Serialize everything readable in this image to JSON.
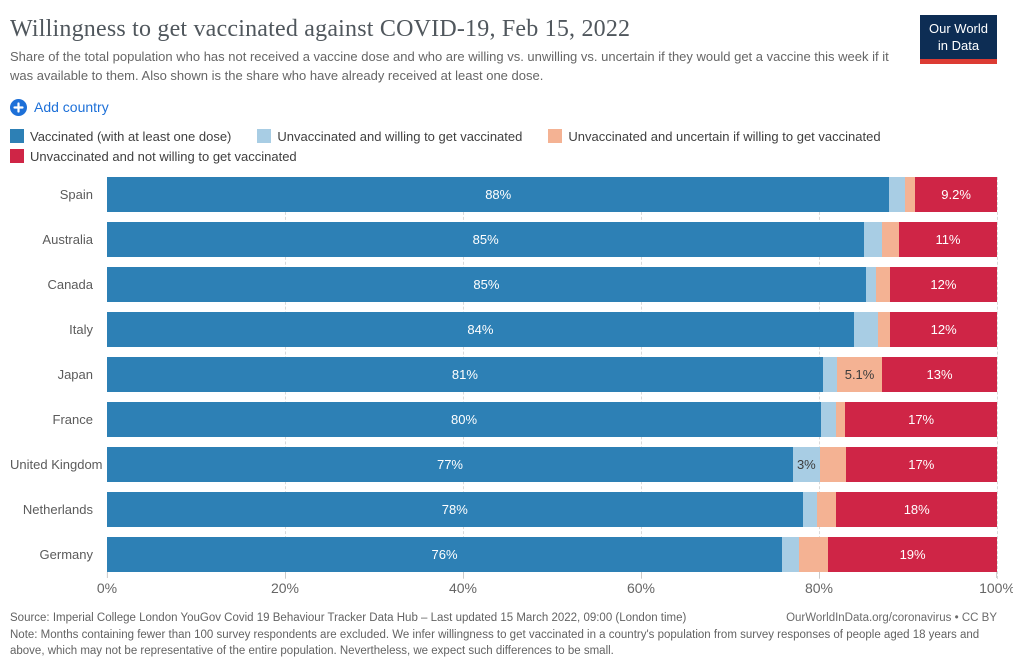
{
  "header": {
    "title": "Willingness to get vaccinated against COVID-19, Feb 15, 2022",
    "subtitle": "Share of the total population who has not received a vaccine dose and who are willing vs. unwilling vs. uncertain if they would get a vaccine this week if it was available to them. Also shown is the share who have already received at least one dose.",
    "logo": {
      "line1": "Our World",
      "line2": "in Data"
    }
  },
  "controls": {
    "add_country_label": "Add country"
  },
  "colors": {
    "accent_blue": "#1d70d8",
    "logo_background": "#0d2d54",
    "logo_underline": "#dc3b33",
    "grid_line": "#d9d9d9",
    "series": {
      "vaccinated": "#2d80b5",
      "willing": "#a8cde4",
      "uncertain": "#f4b293",
      "unwilling": "#cf2546"
    }
  },
  "chart_data": {
    "type": "bar",
    "stacked": true,
    "orientation": "horizontal",
    "title": "Willingness to get vaccinated against COVID-19, Feb 15, 2022",
    "categories": [
      "Spain",
      "Australia",
      "Canada",
      "Italy",
      "Japan",
      "France",
      "United Kingdom",
      "Netherlands",
      "Germany"
    ],
    "series": [
      {
        "key": "vaccinated",
        "name": "Vaccinated (with at least one dose)",
        "color": "#2d80b5",
        "values": [
          88,
          85,
          85,
          84,
          81,
          80,
          77,
          78,
          76
        ],
        "value_labels": [
          "88%",
          "85%",
          "85%",
          "84%",
          "81%",
          "80%",
          "77%",
          "78%",
          "76%"
        ],
        "label_style": "light"
      },
      {
        "key": "willing",
        "name": "Unvaccinated and willing to get vaccinated",
        "color": "#a8cde4",
        "values": [
          1.8,
          2.0,
          1.2,
          2.7,
          1.6,
          1.7,
          3.0,
          1.6,
          1.9
        ],
        "value_labels": [
          "",
          "",
          "",
          "",
          "",
          "",
          "3%",
          "",
          ""
        ],
        "label_style": "dark"
      },
      {
        "key": "uncertain",
        "name": "Unvaccinated and uncertain if willing to get vaccinated",
        "color": "#f4b293",
        "values": [
          1.1,
          1.9,
          1.5,
          1.4,
          5.1,
          1.0,
          2.9,
          2.2,
          3.3
        ],
        "value_labels": [
          "",
          "",
          "",
          "",
          "5.1%",
          "",
          "",
          "",
          ""
        ],
        "label_style": "dark"
      },
      {
        "key": "unwilling",
        "name": "Unvaccinated and not willing to get vaccinated",
        "color": "#cf2546",
        "values": [
          9.2,
          11,
          12,
          12,
          13,
          17,
          17,
          18,
          19
        ],
        "value_labels": [
          "9.2%",
          "11%",
          "12%",
          "12%",
          "13%",
          "17%",
          "17%",
          "18%",
          "19%"
        ],
        "label_style": "light"
      }
    ],
    "x_ticks": [
      {
        "value": 0,
        "label": "0%"
      },
      {
        "value": 20,
        "label": "20%"
      },
      {
        "value": 40,
        "label": "40%"
      },
      {
        "value": 60,
        "label": "60%"
      },
      {
        "value": 80,
        "label": "80%"
      },
      {
        "value": 100,
        "label": "100%"
      }
    ],
    "xlim": [
      0,
      100
    ],
    "grid": "dashed-vertical",
    "legend_position": "top"
  },
  "footer": {
    "source": "Source: Imperial College London YouGov Covid 19 Behaviour Tracker Data Hub – Last updated 15 March 2022, 09:00 (London time)",
    "rights": "OurWorldInData.org/coronavirus • CC BY",
    "note": "Note: Months containing fewer than 100 survey respondents are excluded. We infer willingness to get vaccinated in a country's population from survey responses of people aged 18 years and above, which may not be representative of the entire population. Nevertheless, we expect such differences to be small."
  }
}
